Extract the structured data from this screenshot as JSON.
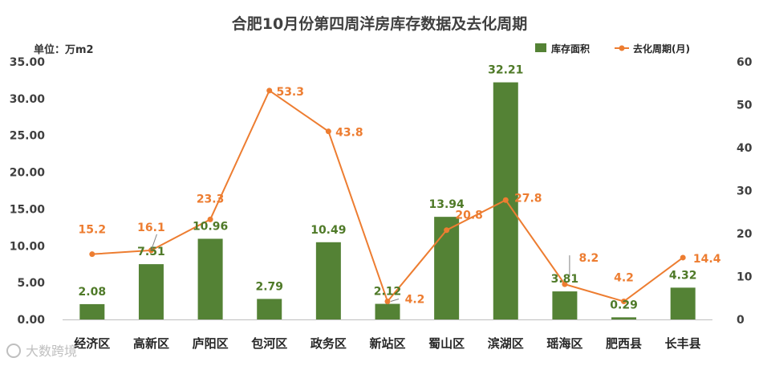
{
  "chart_data": {
    "type": "bar",
    "title": "合肥10月份第四周洋房库存数据及去化周期",
    "unit_label": "单位：万m2",
    "categories": [
      "经济区",
      "高新区",
      "庐阳区",
      "包河区",
      "政务区",
      "新站区",
      "蜀山区",
      "滨湖区",
      "瑶海区",
      "肥西县",
      "长丰县"
    ],
    "series": [
      {
        "name": "库存面积",
        "type": "bar",
        "axis": "left",
        "color": "#548235",
        "values": [
          2.08,
          7.51,
          10.96,
          2.79,
          10.49,
          2.12,
          13.94,
          32.21,
          3.81,
          0.29,
          4.32
        ],
        "labels": [
          "2.08",
          "7.51",
          "10.96",
          "2.79",
          "10.49",
          "2.12",
          "13.94",
          "32.21",
          "3.81",
          "0.29",
          "4.32"
        ]
      },
      {
        "name": "去化周期(月)",
        "type": "line",
        "axis": "right",
        "color": "#ed7d31",
        "values": [
          15.2,
          16.1,
          23.3,
          53.3,
          43.8,
          4.2,
          20.8,
          27.8,
          8.2,
          4.2,
          14.4
        ],
        "labels": [
          "15.2",
          "16.1",
          "23.3",
          "53.3",
          "43.8",
          "4.2",
          "20.8",
          "27.8",
          "8.2",
          "4.2",
          "14.4"
        ]
      }
    ],
    "y_left": {
      "min": 0,
      "max": 35,
      "ticks": [
        "0.00",
        "5.00",
        "10.00",
        "15.00",
        "20.00",
        "25.00",
        "30.00",
        "35.00"
      ]
    },
    "y_right": {
      "min": 0,
      "max": 60,
      "ticks": [
        "0",
        "10",
        "20",
        "30",
        "40",
        "50",
        "60"
      ]
    },
    "grid": false,
    "legend_position": "top-right",
    "watermark": "大数跨境"
  }
}
